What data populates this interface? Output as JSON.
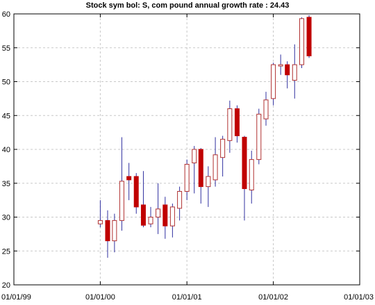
{
  "chart_data": {
    "type": "candlestick",
    "title": "Stock sym bol: S, com pound annual growth rate : 24.43",
    "xlabel": "",
    "ylabel": "",
    "x_range": [
      "01/01/99",
      "01/01/03"
    ],
    "ylim": [
      20,
      60
    ],
    "y_ticks": [
      20,
      25,
      30,
      35,
      40,
      45,
      50,
      55,
      60
    ],
    "x_ticks": [
      "01/01/99",
      "01/01/00",
      "01/01/01",
      "01/01/02",
      "01/01/03"
    ],
    "grid": true,
    "colors": {
      "up": "#b03030",
      "down": "#c00000",
      "wick": "#3030a0",
      "grid": "#c8c8c8"
    },
    "candles": [
      {
        "x": "2000-01-01",
        "open": 29.0,
        "close": 29.5,
        "high": 32.5,
        "low": 28.5
      },
      {
        "x": "2000-02-01",
        "open": 29.5,
        "close": 26.5,
        "high": 31.0,
        "low": 24.0
      },
      {
        "x": "2000-03-01",
        "open": 26.5,
        "close": 29.5,
        "high": 30.5,
        "low": 24.8
      },
      {
        "x": "2000-04-01",
        "open": 29.5,
        "close": 35.3,
        "high": 41.8,
        "low": 28.0
      },
      {
        "x": "2000-05-01",
        "open": 36.0,
        "close": 35.5,
        "high": 38.0,
        "low": 32.5
      },
      {
        "x": "2000-06-01",
        "open": 36.0,
        "close": 31.5,
        "high": 36.5,
        "low": 30.5
      },
      {
        "x": "2000-07-01",
        "open": 31.8,
        "close": 28.8,
        "high": 36.8,
        "low": 28.5
      },
      {
        "x": "2000-08-01",
        "open": 29.0,
        "close": 30.0,
        "high": 31.5,
        "low": 28.5
      },
      {
        "x": "2000-09-01",
        "open": 30.0,
        "close": 31.2,
        "high": 35.0,
        "low": 27.5
      },
      {
        "x": "2000-10-01",
        "open": 31.8,
        "close": 28.7,
        "high": 33.0,
        "low": 26.8
      },
      {
        "x": "2000-11-01",
        "open": 28.7,
        "close": 31.5,
        "high": 32.0,
        "low": 27.0
      },
      {
        "x": "2000-12-01",
        "open": 31.3,
        "close": 33.8,
        "high": 34.5,
        "low": 29.5
      },
      {
        "x": "2001-01-01",
        "open": 33.8,
        "close": 37.8,
        "high": 38.5,
        "low": 32.5
      },
      {
        "x": "2001-02-01",
        "open": 38.0,
        "close": 40.0,
        "high": 40.5,
        "low": 33.5
      },
      {
        "x": "2001-03-01",
        "open": 40.0,
        "close": 34.5,
        "high": 40.2,
        "low": 32.0
      },
      {
        "x": "2001-04-01",
        "open": 34.5,
        "close": 36.0,
        "high": 37.5,
        "low": 31.5
      },
      {
        "x": "2001-05-01",
        "open": 35.5,
        "close": 39.2,
        "high": 41.8,
        "low": 34.5
      },
      {
        "x": "2001-06-01",
        "open": 38.8,
        "close": 41.5,
        "high": 42.0,
        "low": 36.0
      },
      {
        "x": "2001-07-01",
        "open": 41.3,
        "close": 46.0,
        "high": 47.2,
        "low": 39.5
      },
      {
        "x": "2001-08-01",
        "open": 46.0,
        "close": 42.0,
        "high": 46.5,
        "low": 41.0
      },
      {
        "x": "2001-09-01",
        "open": 41.8,
        "close": 34.2,
        "high": 42.0,
        "low": 29.5
      },
      {
        "x": "2001-10-01",
        "open": 34.0,
        "close": 38.5,
        "high": 39.8,
        "low": 32.0
      },
      {
        "x": "2001-11-01",
        "open": 38.5,
        "close": 45.2,
        "high": 46.0,
        "low": 37.8
      },
      {
        "x": "2001-12-01",
        "open": 44.5,
        "close": 47.3,
        "high": 48.5,
        "low": 43.5
      },
      {
        "x": "2002-01-01",
        "open": 47.5,
        "close": 52.5,
        "high": 52.8,
        "low": 46.5
      },
      {
        "x": "2002-02-01",
        "open": 52.3,
        "close": 52.5,
        "high": 54.0,
        "low": 51.0
      },
      {
        "x": "2002-03-01",
        "open": 52.5,
        "close": 51.0,
        "high": 53.0,
        "low": 49.0
      },
      {
        "x": "2002-04-01",
        "open": 50.2,
        "close": 52.5,
        "high": 55.5,
        "low": 47.5
      },
      {
        "x": "2002-05-01",
        "open": 52.5,
        "close": 59.3,
        "high": 59.5,
        "low": 52.0
      },
      {
        "x": "2002-06-01",
        "open": 59.5,
        "close": 53.8,
        "high": 59.8,
        "low": 53.5
      }
    ]
  }
}
